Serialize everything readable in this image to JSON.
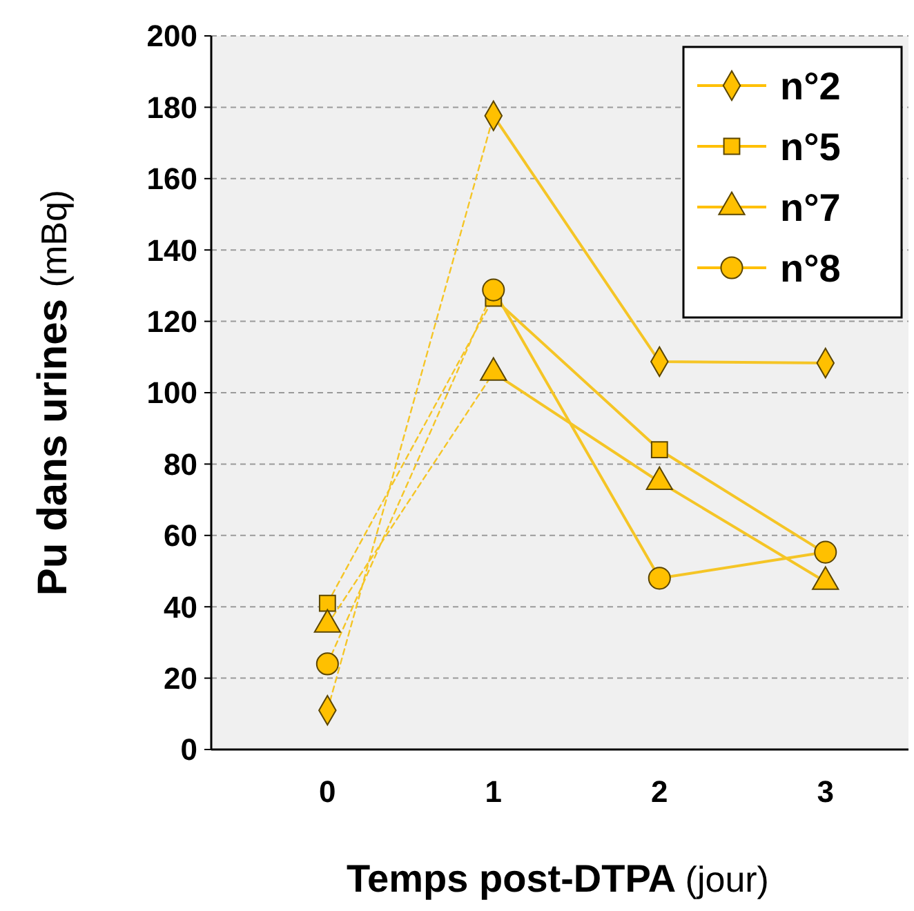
{
  "chart_data": {
    "type": "line",
    "xlabel": "Temps post-DTPA (jour)",
    "ylabel": "Pu dans urines (mBq)",
    "xlim": [
      -0.7,
      3.5
    ],
    "xticks": [
      0,
      1,
      2,
      3
    ],
    "ylim": [
      0,
      200
    ],
    "yticks": [
      0,
      20,
      40,
      60,
      80,
      100,
      120,
      140,
      160,
      180,
      200
    ],
    "grid": "y",
    "legend": "top right",
    "series": [
      {
        "color": "#f5c526",
        "line_style": "dashed",
        "marker": "none",
        "x": [
          0,
          1
        ],
        "values": [
          11,
          177.6
        ]
      },
      {
        "color": "#f5c526",
        "line_style": "dashed",
        "marker": "none",
        "x": [
          0,
          1
        ],
        "values": [
          41,
          126.5
        ]
      },
      {
        "color": "#f5c526",
        "line_style": "dashed",
        "marker": "none",
        "x": [
          0,
          1
        ],
        "values": [
          35,
          105.6
        ]
      },
      {
        "color": "#f5c526",
        "line_style": "dashed",
        "marker": "none",
        "x": [
          0,
          1
        ],
        "values": [
          24,
          128.8
        ]
      },
      {
        "color": "#f5c526",
        "line_style": "solid",
        "marker": "none",
        "x": [
          1,
          2,
          3
        ],
        "values": [
          177.6,
          108.7,
          108.3
        ]
      },
      {
        "color": "#f5c526",
        "line_style": "solid",
        "marker": "none",
        "x": [
          1,
          2,
          3
        ],
        "values": [
          126.5,
          84,
          55
        ]
      },
      {
        "color": "#f5c526",
        "line_style": "solid",
        "marker": "none",
        "x": [
          1,
          2,
          3
        ],
        "values": [
          105.6,
          75,
          47
        ]
      },
      {
        "color": "#f5c526",
        "line_style": "solid",
        "marker": "none",
        "x": [
          1,
          2,
          3
        ],
        "values": [
          128.8,
          48,
          55.3
        ]
      },
      {
        "type": "scatter",
        "name": "n°2",
        "color": "#ffc000",
        "marker": "diamond",
        "x": [
          0,
          1,
          2,
          3
        ],
        "values": [
          11,
          177.6,
          108.7,
          108.3
        ]
      },
      {
        "type": "scatter",
        "name": "n°5",
        "color": "#ffc000",
        "marker": "square",
        "x": [
          0,
          1,
          2
        ],
        "values": [
          41,
          126.5,
          84
        ]
      },
      {
        "type": "scatter",
        "name": "n°7",
        "color": "#ffc000",
        "marker": "triangle",
        "x": [
          0,
          1,
          2,
          3
        ],
        "values": [
          35,
          105.6,
          75,
          47
        ]
      },
      {
        "type": "scatter",
        "name": "n°8",
        "color": "#ffc000",
        "marker": "circle",
        "x": [
          0,
          1,
          2,
          3
        ],
        "values": [
          24,
          128.8,
          48,
          55.3
        ]
      }
    ]
  }
}
